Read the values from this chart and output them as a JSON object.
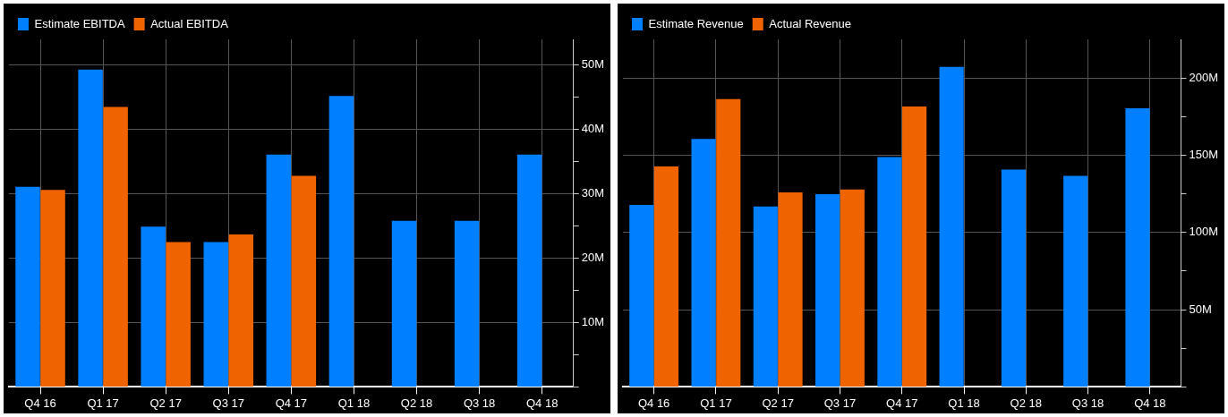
{
  "chart_data": [
    {
      "type": "bar",
      "categories": [
        "Q4 16",
        "Q1 17",
        "Q2 17",
        "Q3 17",
        "Q4 17",
        "Q1 18",
        "Q2 18",
        "Q3 18",
        "Q4 18"
      ],
      "series": [
        {
          "name": "Estimate EBITDA",
          "color": "#0080ff",
          "values": [
            31.1,
            49.3,
            24.9,
            22.5,
            36.1,
            45.2,
            25.8,
            25.8,
            36.1
          ]
        },
        {
          "name": "Actual EBITDA",
          "color": "#f06400",
          "values": [
            30.6,
            43.5,
            22.5,
            23.7,
            32.8,
            null,
            null,
            null,
            null
          ]
        }
      ],
      "ylim": [
        0,
        54
      ],
      "yticks": [
        {
          "value": 0,
          "label": null
        },
        {
          "value": 5,
          "label": null
        },
        {
          "value": 10,
          "label": "10M"
        },
        {
          "value": 15,
          "label": null
        },
        {
          "value": 20,
          "label": "20M"
        },
        {
          "value": 25,
          "label": null
        },
        {
          "value": 30,
          "label": "30M"
        },
        {
          "value": 35,
          "label": null
        },
        {
          "value": 40,
          "label": "40M"
        },
        {
          "value": 45,
          "label": null
        },
        {
          "value": 50,
          "label": "50M"
        }
      ],
      "grid": true,
      "legend": "top left"
    },
    {
      "type": "bar",
      "categories": [
        "Q4 16",
        "Q1 17",
        "Q2 17",
        "Q3 17",
        "Q4 17",
        "Q1 18",
        "Q2 18",
        "Q3 18",
        "Q4 18"
      ],
      "series": [
        {
          "name": "Estimate Revenue",
          "color": "#0080ff",
          "values": [
            117.8,
            160.5,
            116.8,
            124.8,
            148.8,
            207.2,
            140.7,
            136.7,
            180.4
          ]
        },
        {
          "name": "Actual Revenue",
          "color": "#f06400",
          "values": [
            142.8,
            186.4,
            125.9,
            127.8,
            181.5,
            null,
            null,
            null,
            null
          ]
        }
      ],
      "ylim": [
        0,
        225
      ],
      "yticks": [
        {
          "value": 0,
          "label": null
        },
        {
          "value": 25,
          "label": null
        },
        {
          "value": 50,
          "label": "50M"
        },
        {
          "value": 75,
          "label": null
        },
        {
          "value": 100,
          "label": "100M"
        },
        {
          "value": 125,
          "label": null
        },
        {
          "value": 150,
          "label": "150M"
        },
        {
          "value": 175,
          "label": null
        },
        {
          "value": 200,
          "label": "200M"
        }
      ],
      "grid": true,
      "legend": "top left"
    }
  ]
}
